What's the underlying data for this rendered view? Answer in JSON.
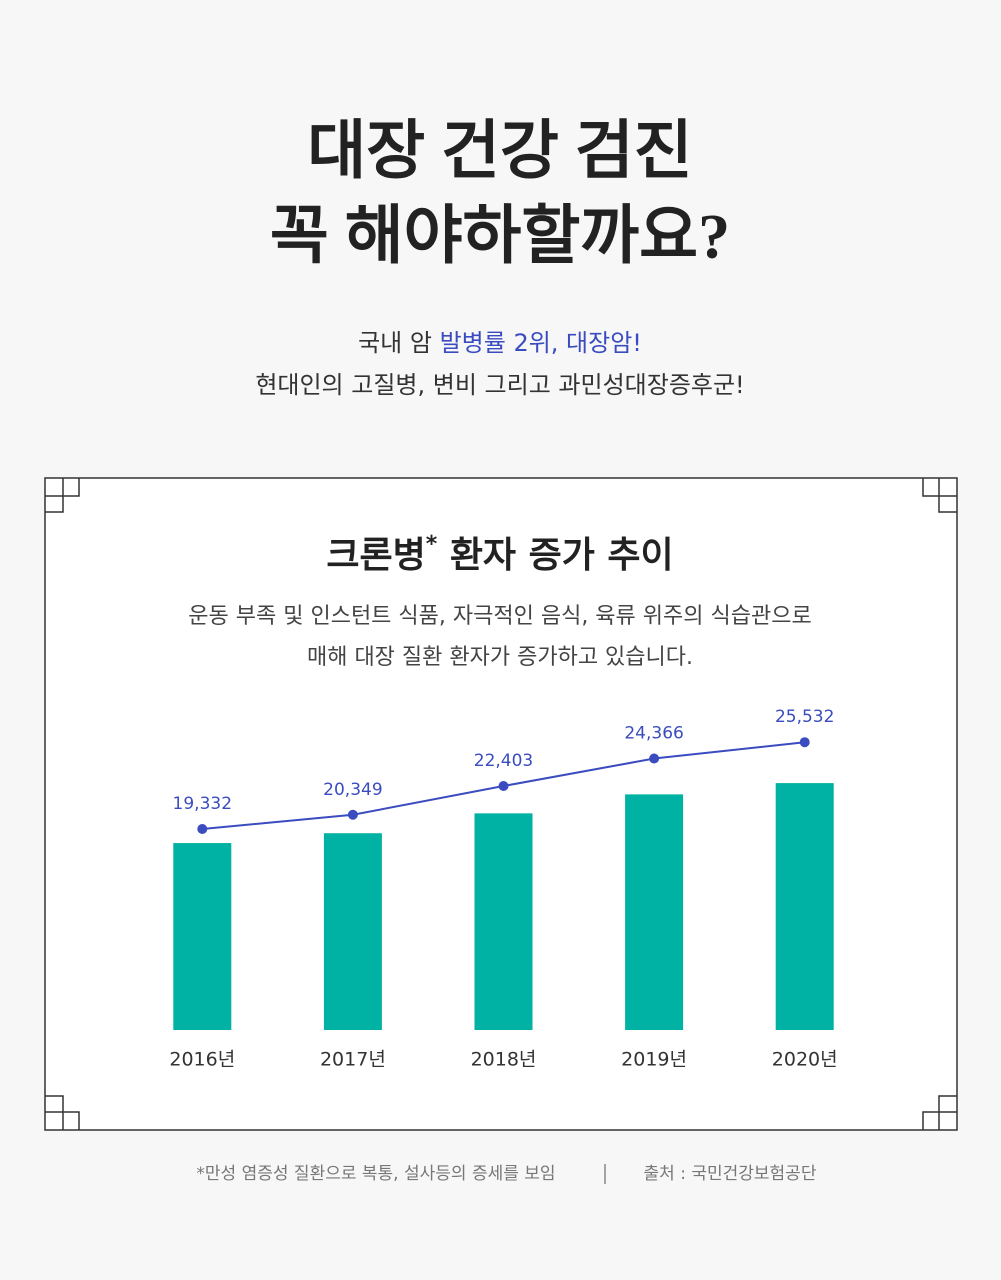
{
  "header": {
    "title": [
      "대장 건강 검진",
      "꼭 해야하할까요?"
    ],
    "subtitle": {
      "line1": [
        "국내 암 ",
        "발병률 2위, 대장암!"
      ],
      "line2": "현대인의 고질병, 변비 그리고 과민성대장증후군!"
    }
  },
  "chart_data": {
    "type": "bar",
    "title": [
      "크론병",
      "*",
      " 환자 증가 추이"
    ],
    "description": [
      "운동 부족 및 인스턴트 식품, 자극적인 음식, 육류 위주의 식습관으로",
      "매해 대장 질환 환자가 증가하고 있습니다."
    ],
    "categories": [
      "2016년",
      "2017년",
      "2018년",
      "2019년",
      "2020년"
    ],
    "values": [
      19332,
      20349,
      22403,
      24366,
      25532
    ],
    "value_labels": [
      "19,332",
      "20,349",
      "22,403",
      "24,366",
      "25,532"
    ],
    "color": "#00b2a3",
    "line_color": "#3a4cc0"
  },
  "footer": {
    "note": "*만성 염증성 질환으로 복통, 설사등의 증세를 보임",
    "source": "출처 : 국민건강보험공단"
  }
}
